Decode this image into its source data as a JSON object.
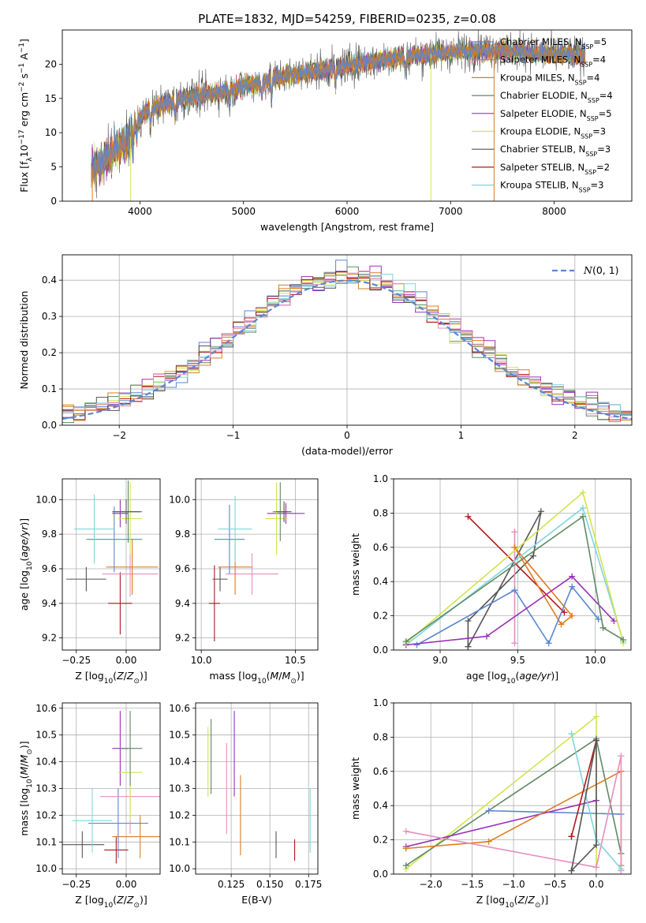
{
  "figure_title": "PLATE=1832, MJD=54259, FIBERID=0235, z=0.08",
  "chart_data": [
    {
      "id": "spectrum",
      "type": "line",
      "xlabel": "wavelength [Angstrom, rest frame]",
      "ylabel": "Flux [f_λ 10^-17 erg cm^-2 s^-1 A^-1]",
      "xlim": [
        3250,
        8750
      ],
      "ylim": [
        0,
        25
      ],
      "xticks": [
        4000,
        5000,
        6000,
        7000,
        8000
      ],
      "yticks": [
        0,
        5,
        10,
        15,
        20
      ],
      "grid": false,
      "legend_position": "right",
      "continuum": {
        "x": [
          3530,
          3650,
          3800,
          3900,
          3960,
          4050,
          4200,
          4400,
          4600,
          4800,
          5000,
          5200,
          5400,
          5600,
          5800,
          6000,
          6200,
          6400,
          6600,
          6800,
          7000,
          7200,
          7400,
          7600,
          7800,
          8000,
          8200,
          8300
        ],
        "y": [
          4.5,
          6.0,
          8.0,
          9.0,
          11.5,
          13.0,
          14.0,
          15.0,
          15.5,
          16.0,
          16.8,
          17.5,
          18.3,
          18.8,
          19.3,
          19.8,
          20.3,
          20.8,
          21.2,
          21.5,
          21.8,
          22.0,
          22.1,
          21.9,
          21.7,
          21.5,
          21.3,
          21.2
        ]
      },
      "series": [
        {
          "name": "Chabrier MILES, N_SSP=5",
          "color": "#5b86d0"
        },
        {
          "name": "Salpeter MILES, N_SSP=4",
          "color": "#e07b1f"
        },
        {
          "name": "Kroupa MILES, N_SSP=4",
          "color": "#c8822a"
        },
        {
          "name": "Chabrier ELODIE, N_SSP=4",
          "color": "#5e8a63"
        },
        {
          "name": "Salpeter ELODIE, N_SSP=5",
          "color": "#9a30b8"
        },
        {
          "name": "Kroupa ELODIE, N_SSP=3",
          "color": "#d2e34f"
        },
        {
          "name": "Chabrier STELIB, N_SSP=3",
          "color": "#555555"
        },
        {
          "name": "Salpeter STELIB, N_SSP=2",
          "color": "#b01818"
        },
        {
          "name": "Kroupa STELIB, N_SSP=3",
          "color": "#7fd6dc"
        }
      ]
    },
    {
      "id": "residuals",
      "type": "line",
      "xlabel": "(data-model)/error",
      "ylabel": "Normed distribution",
      "xlim": [
        -2.5,
        2.5
      ],
      "ylim": [
        0,
        0.47
      ],
      "xticks": [
        -2,
        -1,
        0,
        1,
        2
      ],
      "yticks": [
        0.0,
        0.1,
        0.2,
        0.3,
        0.4
      ],
      "grid": true,
      "legend_position": "top-right",
      "legend_label": "N(0,1)",
      "gaussian": {
        "mean": 0,
        "sigma": 1,
        "color": "#5b86d0"
      }
    },
    {
      "id": "age_vs_Z",
      "type": "scatter",
      "xlabel": "Z [log10(Z/Z_sun)]",
      "ylabel": "age [log10(age/yr)]",
      "xlim": [
        -0.32,
        0.17
      ],
      "ylim": [
        9.13,
        10.12
      ],
      "xticks": [
        -0.25,
        0.0
      ],
      "yticks": [
        9.2,
        9.4,
        9.6,
        9.8,
        10.0
      ],
      "grid": true,
      "points": [
        {
          "x": -0.03,
          "y": 9.4,
          "xerr": 0.06,
          "yerr": 0.18,
          "color": "#b01818"
        },
        {
          "x": -0.2,
          "y": 9.54,
          "xerr": 0.1,
          "yerr": 0.07,
          "color": "#555555"
        },
        {
          "x": 0.02,
          "y": 9.57,
          "xerr": 0.14,
          "yerr": 0.13,
          "color": "#e68fbd"
        },
        {
          "x": 0.03,
          "y": 9.61,
          "xerr": 0.13,
          "yerr": 0.16,
          "color": "#e07b1f"
        },
        {
          "x": -0.06,
          "y": 9.77,
          "xerr": 0.14,
          "yerr": 0.19,
          "color": "#5b86d0"
        },
        {
          "x": -0.16,
          "y": 9.83,
          "xerr": 0.1,
          "yerr": 0.2,
          "color": "#7fd6dc"
        },
        {
          "x": -0.03,
          "y": 9.92,
          "xerr": 0.04,
          "yerr": 0.08,
          "color": "#9a30b8"
        },
        {
          "x": 0.02,
          "y": 9.89,
          "xerr": 0.06,
          "yerr": 0.21,
          "color": "#d2e34f"
        },
        {
          "x": 0.01,
          "y": 9.93,
          "xerr": 0.07,
          "yerr": 0.18,
          "color": "#5e8a63"
        },
        {
          "x": 0.0,
          "y": 9.93,
          "xerr": 0.07,
          "yerr": 0.07,
          "color": "#555555"
        }
      ]
    },
    {
      "id": "age_vs_mass",
      "type": "scatter",
      "xlabel": "mass [log10(M/M_sun)]",
      "ylabel": "",
      "xlim": [
        9.97,
        10.62
      ],
      "ylim": [
        9.13,
        10.12
      ],
      "xticks": [
        10.0,
        10.5
      ],
      "yticks": [
        9.2,
        9.4,
        9.6,
        9.8,
        10.0
      ],
      "grid": true,
      "points": [
        {
          "x": 10.07,
          "y": 9.4,
          "xerr": 0.03,
          "yerr": 0.22,
          "color": "#b01818"
        },
        {
          "x": 10.1,
          "y": 9.54,
          "xerr": 0.04,
          "yerr": 0.07,
          "color": "#555555"
        },
        {
          "x": 10.27,
          "y": 9.57,
          "xerr": 0.14,
          "yerr": 0.12,
          "color": "#e68fbd"
        },
        {
          "x": 10.18,
          "y": 9.61,
          "xerr": 0.09,
          "yerr": 0.16,
          "color": "#e07b1f"
        },
        {
          "x": 10.15,
          "y": 9.77,
          "xerr": 0.08,
          "yerr": 0.2,
          "color": "#5b86d0"
        },
        {
          "x": 10.18,
          "y": 9.83,
          "xerr": 0.09,
          "yerr": 0.19,
          "color": "#7fd6dc"
        },
        {
          "x": 10.45,
          "y": 9.92,
          "xerr": 0.1,
          "yerr": 0.06,
          "color": "#9a30b8"
        },
        {
          "x": 10.4,
          "y": 9.89,
          "xerr": 0.06,
          "yerr": 0.21,
          "color": "#d2e34f"
        },
        {
          "x": 10.42,
          "y": 9.93,
          "xerr": 0.04,
          "yerr": 0.17,
          "color": "#5e8a63"
        },
        {
          "x": 10.44,
          "y": 9.93,
          "xerr": 0.04,
          "yerr": 0.06,
          "color": "#555555"
        }
      ]
    },
    {
      "id": "weight_vs_age",
      "type": "line",
      "xlabel": "age [log10(age/yr)]",
      "ylabel": "mass weight",
      "xlim": [
        8.7,
        10.23
      ],
      "ylim": [
        0,
        1.0
      ],
      "xticks": [
        9.0,
        9.5,
        10.0
      ],
      "yticks": [
        0.0,
        0.2,
        0.4,
        0.6,
        0.8,
        1.0
      ],
      "grid": true,
      "series": [
        {
          "color": "#b01818",
          "x": [
            9.18,
            9.8
          ],
          "y": [
            0.78,
            0.22
          ]
        },
        {
          "color": "#555555",
          "x": [
            9.18,
            9.18,
            9.6,
            9.65,
            9.18
          ],
          "y": [
            0.02,
            0.17,
            0.55,
            0.81,
            0.02
          ]
        },
        {
          "color": "#e68fbd",
          "x": [
            9.48,
            9.48,
            9.48
          ],
          "y": [
            0.69,
            0.04,
            0.69
          ]
        },
        {
          "color": "#e07b1f",
          "x": [
            9.48,
            9.78,
            9.85,
            9.48
          ],
          "y": [
            0.6,
            0.15,
            0.2,
            0.6
          ]
        },
        {
          "color": "#5b86d0",
          "x": [
            8.85,
            9.48,
            9.7,
            9.85,
            10.02
          ],
          "y": [
            0.03,
            0.35,
            0.04,
            0.37,
            0.18
          ]
        },
        {
          "color": "#7fd6dc",
          "x": [
            8.78,
            9.92,
            10.18
          ],
          "y": [
            0.03,
            0.83,
            0.05
          ]
        },
        {
          "color": "#9a30b8",
          "x": [
            8.78,
            9.3,
            9.85,
            10.12
          ],
          "y": [
            0.03,
            0.08,
            0.43,
            0.17
          ]
        },
        {
          "color": "#d2e34f",
          "x": [
            8.78,
            9.92,
            10.18
          ],
          "y": [
            0.04,
            0.92,
            0.04
          ]
        },
        {
          "color": "#5e8a63",
          "x": [
            8.78,
            9.92,
            10.05,
            10.18
          ],
          "y": [
            0.05,
            0.78,
            0.13,
            0.06
          ]
        }
      ]
    },
    {
      "id": "mass_vs_Z",
      "type": "scatter",
      "xlabel": "Z [log10(Z/Z_sun)]",
      "ylabel": "mass [log10(M/M_sun)]",
      "xlim": [
        -0.32,
        0.17
      ],
      "ylim": [
        9.98,
        10.62
      ],
      "xticks": [
        -0.25,
        0.0
      ],
      "yticks": [
        10.0,
        10.1,
        10.2,
        10.3,
        10.4,
        10.5,
        10.6
      ],
      "grid": true,
      "points": [
        {
          "x": -0.05,
          "y": 10.07,
          "xerr": 0.06,
          "yerr": 0.05,
          "color": "#b01818"
        },
        {
          "x": -0.22,
          "y": 10.09,
          "xerr": 0.11,
          "yerr": 0.05,
          "color": "#555555"
        },
        {
          "x": 0.07,
          "y": 10.12,
          "xerr": 0.14,
          "yerr": 0.08,
          "color": "#e07b1f"
        },
        {
          "x": -0.04,
          "y": 10.17,
          "xerr": 0.15,
          "yerr": 0.13,
          "color": "#5b86d0"
        },
        {
          "x": -0.17,
          "y": 10.18,
          "xerr": 0.1,
          "yerr": 0.12,
          "color": "#7fd6dc"
        },
        {
          "x": 0.02,
          "y": 10.27,
          "xerr": 0.15,
          "yerr": 0.14,
          "color": "#e68fbd"
        },
        {
          "x": -0.03,
          "y": 10.45,
          "xerr": 0.04,
          "yerr": 0.14,
          "color": "#9a30b8"
        },
        {
          "x": 0.02,
          "y": 10.36,
          "xerr": 0.06,
          "yerr": 0.18,
          "color": "#d2e34f"
        },
        {
          "x": 0.02,
          "y": 10.45,
          "xerr": 0.06,
          "yerr": 0.14,
          "color": "#5e8a63"
        }
      ]
    },
    {
      "id": "mass_vs_EBV",
      "type": "scatter",
      "xlabel": "E(B-V)",
      "ylabel": "",
      "xlim": [
        0.102,
        0.181
      ],
      "ylim": [
        9.98,
        10.62
      ],
      "xticks": [
        0.125,
        0.15,
        0.175
      ],
      "yticks": [
        10.0,
        10.1,
        10.2,
        10.3,
        10.4,
        10.5,
        10.6
      ],
      "grid": true,
      "points": [
        {
          "x": 0.166,
          "y": 10.07,
          "xerr": 0.0,
          "yerr": 0.04,
          "color": "#b01818"
        },
        {
          "x": 0.154,
          "y": 10.09,
          "xerr": 0.0,
          "yerr": 0.05,
          "color": "#555555"
        },
        {
          "x": 0.131,
          "y": 10.2,
          "xerr": 0.0,
          "yerr": 0.15,
          "color": "#e07b1f"
        },
        {
          "x": 0.176,
          "y": 10.18,
          "xerr": 0.0,
          "yerr": 0.12,
          "color": "#7fd6dc"
        },
        {
          "x": 0.122,
          "y": 10.3,
          "xerr": 0.0,
          "yerr": 0.17,
          "color": "#e68fbd"
        },
        {
          "x": 0.127,
          "y": 10.43,
          "xerr": 0.0,
          "yerr": 0.16,
          "color": "#9a30b8"
        },
        {
          "x": 0.11,
          "y": 10.4,
          "xerr": 0.0,
          "yerr": 0.13,
          "color": "#d2e34f"
        },
        {
          "x": 0.112,
          "y": 10.42,
          "xerr": 0.0,
          "yerr": 0.14,
          "color": "#5e8a63"
        }
      ]
    },
    {
      "id": "weight_vs_Z",
      "type": "line",
      "xlabel": "Z [log10(Z/Z_sun)]",
      "ylabel": "mass weight",
      "xlim": [
        -2.45,
        0.42
      ],
      "ylim": [
        0,
        1.0
      ],
      "xticks": [
        -2.0,
        -1.5,
        -1.0,
        -0.5,
        0.0
      ],
      "yticks": [
        0.0,
        0.2,
        0.4,
        0.6,
        0.8,
        1.0
      ],
      "grid": true,
      "series": [
        {
          "color": "#d2e34f",
          "x": [
            -2.3,
            0.0,
            0.0
          ],
          "y": [
            0.03,
            0.92,
            0.04
          ]
        },
        {
          "color": "#5e8a63",
          "x": [
            -2.3,
            0.0,
            0.3
          ],
          "y": [
            0.05,
            0.79,
            0.12
          ]
        },
        {
          "color": "#5b86d0",
          "x": [
            -1.3,
            0.3
          ],
          "y": [
            0.37,
            0.35
          ]
        },
        {
          "color": "#9a30b8",
          "x": [
            -2.3,
            0.0
          ],
          "y": [
            0.16,
            0.43
          ]
        },
        {
          "color": "#e07b1f",
          "x": [
            -2.3,
            -1.3,
            0.3,
            0.3
          ],
          "y": [
            0.15,
            0.19,
            0.6,
            0.05
          ]
        },
        {
          "color": "#e68fbd",
          "x": [
            -2.3,
            0.0,
            0.3,
            0.3
          ],
          "y": [
            0.25,
            0.04,
            0.69,
            0.02
          ]
        },
        {
          "color": "#7fd6dc",
          "x": [
            -0.3,
            0.0,
            0.3
          ],
          "y": [
            0.82,
            0.2,
            0.03
          ]
        },
        {
          "color": "#b01818",
          "x": [
            -0.3,
            0.0,
            -0.3
          ],
          "y": [
            0.22,
            0.78,
            0.22
          ]
        },
        {
          "color": "#555555",
          "x": [
            -0.3,
            0.0,
            0.0,
            -0.3
          ],
          "y": [
            0.02,
            0.17,
            0.78,
            0.02
          ]
        }
      ]
    }
  ]
}
